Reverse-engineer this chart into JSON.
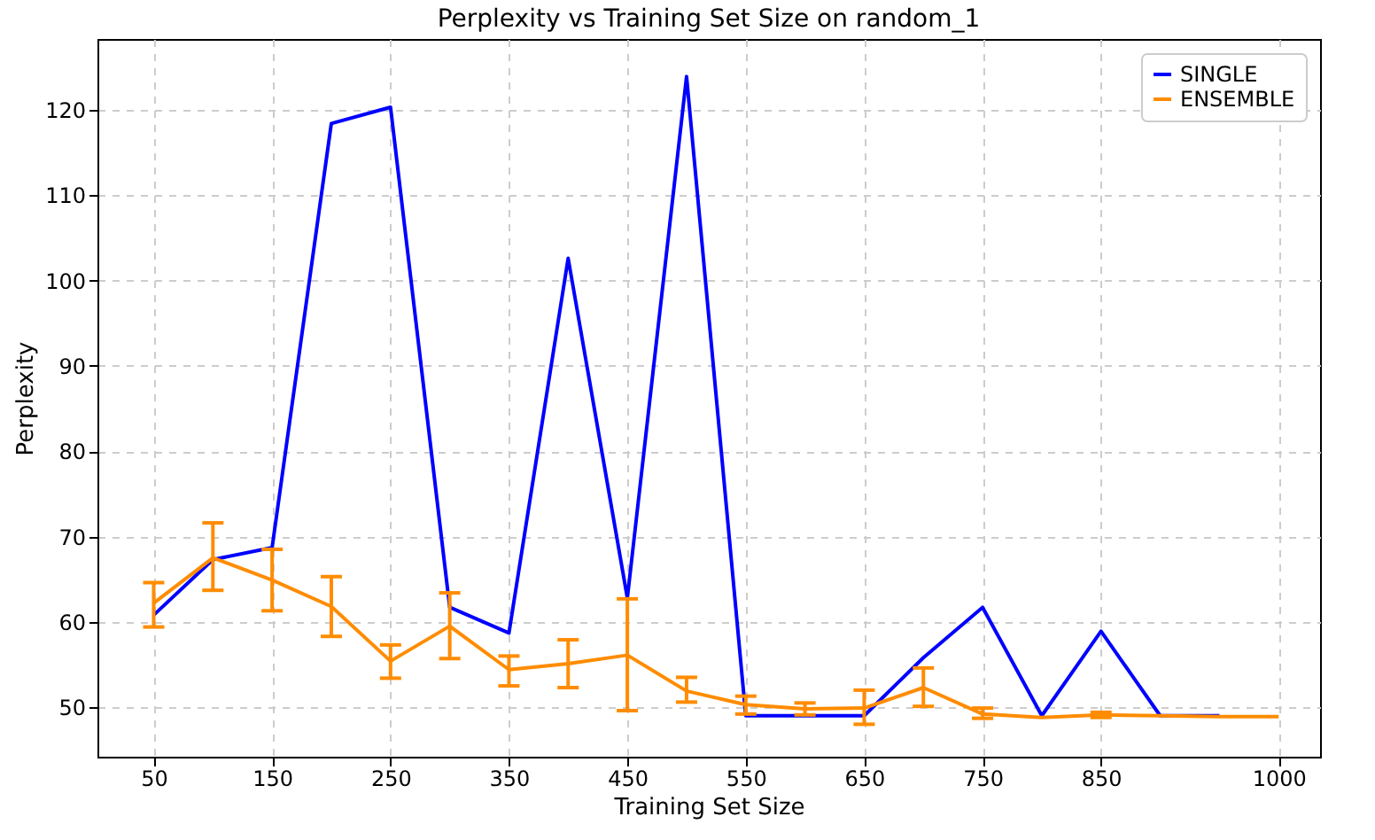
{
  "chart_data": {
    "type": "line",
    "title": "Perplexity vs Training Set Size on random_1",
    "xlabel": "Training Set Size",
    "ylabel": "Perplexity",
    "x": [
      50,
      100,
      150,
      200,
      250,
      300,
      350,
      400,
      450,
      500,
      550,
      600,
      650,
      700,
      750,
      800,
      850,
      900,
      950,
      1000
    ],
    "xlim": [
      2.5,
      1035
    ],
    "xticks": [
      50,
      150,
      250,
      350,
      450,
      550,
      650,
      750,
      850,
      1000
    ],
    "ylim": [
      44.2,
      128.3
    ],
    "yticks": [
      50,
      60,
      70,
      80,
      90,
      100,
      110,
      120
    ],
    "grid": true,
    "legend": "top right",
    "marker": "none",
    "line_style": "solid",
    "series": [
      {
        "name": "SINGLE",
        "color": "#0000ff",
        "values": [
          60.8,
          67.3,
          68.7,
          118.4,
          120.3,
          61.7,
          58.7,
          102.6,
          62.8,
          123.9,
          49.0,
          49.0,
          49.0,
          55.8,
          61.7,
          49.0,
          58.9,
          49.0,
          49.0,
          null
        ]
      },
      {
        "name": "ENSEMBLE",
        "color": "#ff8c00",
        "values": [
          62.2,
          67.5,
          64.9,
          61.8,
          55.4,
          59.5,
          54.4,
          55.1,
          56.1,
          51.9,
          50.3,
          49.8,
          49.9,
          52.3,
          49.2,
          48.8,
          49.1,
          49.0,
          48.9,
          48.9
        ],
        "errors": [
          [
            59.4,
            64.6
          ],
          [
            63.7,
            71.6
          ],
          [
            61.3,
            68.5
          ],
          [
            58.3,
            65.3
          ],
          [
            53.4,
            57.3
          ],
          [
            55.7,
            63.4
          ],
          [
            52.5,
            56.0
          ],
          [
            52.3,
            57.9
          ],
          [
            49.6,
            62.7
          ],
          [
            50.6,
            53.5
          ],
          [
            49.2,
            51.3
          ],
          [
            49.1,
            50.5
          ],
          [
            48.0,
            52.0
          ],
          [
            50.1,
            54.6
          ],
          [
            48.7,
            49.9
          ],
          null,
          [
            48.8,
            49.4
          ],
          null,
          null,
          null
        ]
      }
    ]
  }
}
